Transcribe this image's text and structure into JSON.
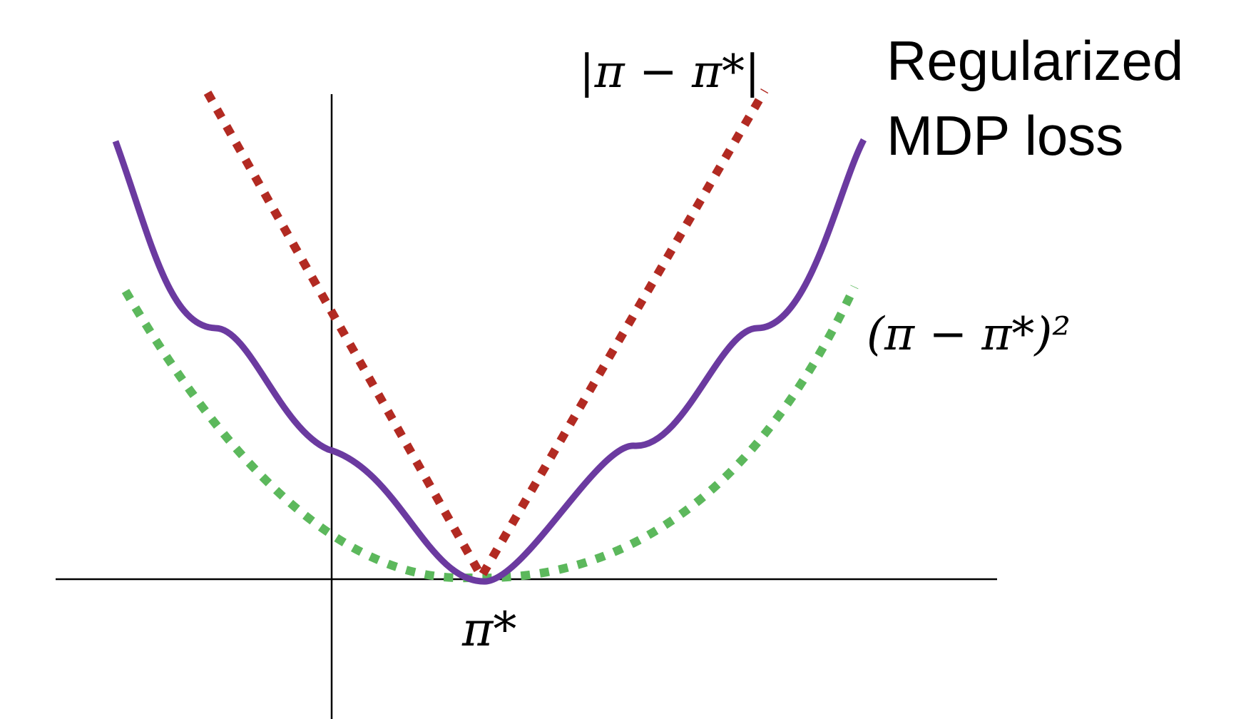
{
  "labels": {
    "abs_loss": "|π − π*|",
    "squared_loss": "(π − π*)²",
    "regularized_line1": "Regularized",
    "regularized_line2": "MDP loss",
    "optimum": "π*"
  },
  "colors": {
    "abs_loss": "#b22a22",
    "squared_loss": "#5cb85c",
    "regularized": "#6b3aa0",
    "axes": "#000000"
  },
  "line_styles": {
    "abs_loss": "dotted",
    "squared_loss": "dotted",
    "regularized": "solid"
  }
}
